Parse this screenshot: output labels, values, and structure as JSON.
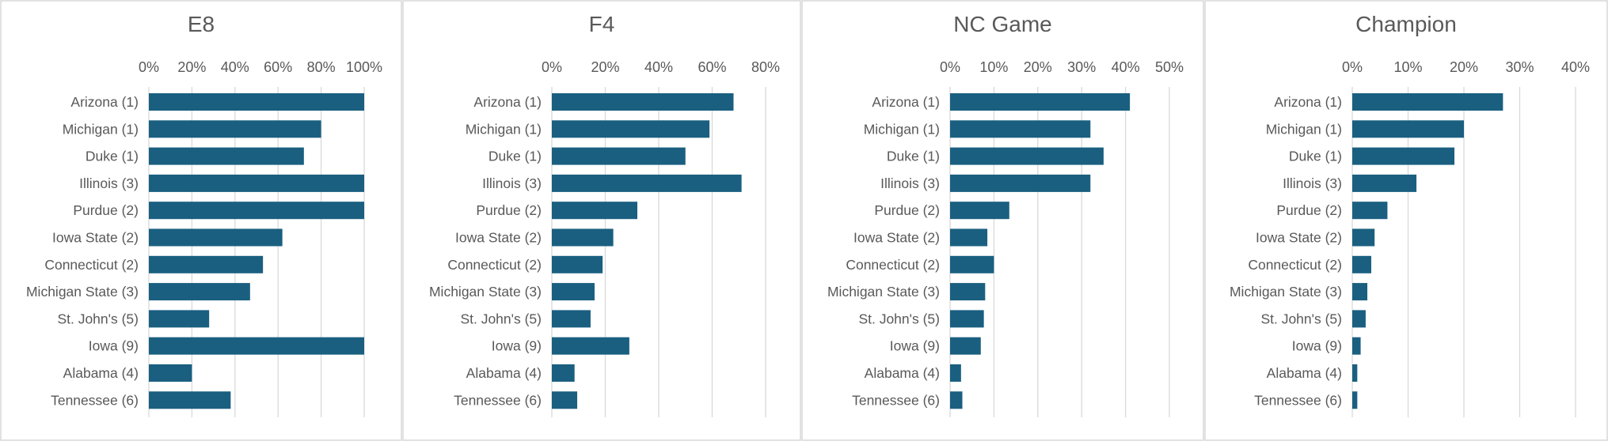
{
  "chart_data": [
    {
      "type": "bar",
      "title": "E8",
      "categories": [
        "Arizona (1)",
        "Michigan (1)",
        "Duke (1)",
        "Illinois (3)",
        "Purdue (2)",
        "Iowa State (2)",
        "Connecticut (2)",
        "Michigan State (3)",
        "St. John's (5)",
        "Iowa (9)",
        "Alabama (4)",
        "Tennessee (6)"
      ],
      "values": [
        1.0,
        0.8,
        0.72,
        1.0,
        1.0,
        0.62,
        0.53,
        0.47,
        0.28,
        1.0,
        0.2,
        0.38
      ],
      "xlim": [
        0,
        1.0
      ],
      "ticks": [
        0,
        0.2,
        0.4,
        0.6,
        0.8,
        1.0
      ],
      "tick_labels": [
        "0%",
        "20%",
        "40%",
        "60%",
        "80%",
        "100%"
      ],
      "grid": true,
      "color": "#1a5f80"
    },
    {
      "type": "bar",
      "title": "F4",
      "categories": [
        "Arizona (1)",
        "Michigan (1)",
        "Duke (1)",
        "Illinois (3)",
        "Purdue (2)",
        "Iowa State (2)",
        "Connecticut (2)",
        "Michigan State (3)",
        "St. John's (5)",
        "Iowa (9)",
        "Alabama (4)",
        "Tennessee (6)"
      ],
      "values": [
        0.68,
        0.59,
        0.5,
        0.71,
        0.32,
        0.23,
        0.19,
        0.16,
        0.145,
        0.29,
        0.085,
        0.095
      ],
      "xlim": [
        0,
        0.8
      ],
      "ticks": [
        0,
        0.2,
        0.4,
        0.6,
        0.8
      ],
      "tick_labels": [
        "0%",
        "20%",
        "40%",
        "60%",
        "80%"
      ],
      "grid": true,
      "color": "#1a5f80"
    },
    {
      "type": "bar",
      "title": "NC Game",
      "categories": [
        "Arizona (1)",
        "Michigan (1)",
        "Duke (1)",
        "Illinois (3)",
        "Purdue (2)",
        "Iowa State (2)",
        "Connecticut (2)",
        "Michigan State (3)",
        "St. John's (5)",
        "Iowa (9)",
        "Alabama (4)",
        "Tennessee (6)"
      ],
      "values": [
        0.41,
        0.32,
        0.35,
        0.32,
        0.135,
        0.085,
        0.1,
        0.08,
        0.077,
        0.07,
        0.025,
        0.028
      ],
      "xlim": [
        0,
        0.5
      ],
      "ticks": [
        0,
        0.1,
        0.2,
        0.3,
        0.4,
        0.5
      ],
      "tick_labels": [
        "0%",
        "10%",
        "20%",
        "30%",
        "40%",
        "50%"
      ],
      "grid": true,
      "color": "#1a5f80"
    },
    {
      "type": "bar",
      "title": "Champion",
      "categories": [
        "Arizona (1)",
        "Michigan (1)",
        "Duke (1)",
        "Illinois (3)",
        "Purdue (2)",
        "Iowa State (2)",
        "Connecticut (2)",
        "Michigan State (3)",
        "St. John's (5)",
        "Iowa (9)",
        "Alabama (4)",
        "Tennessee (6)"
      ],
      "values": [
        0.27,
        0.2,
        0.183,
        0.115,
        0.063,
        0.04,
        0.034,
        0.027,
        0.024,
        0.015,
        0.009,
        0.009
      ],
      "xlim": [
        0,
        0.4
      ],
      "ticks": [
        0,
        0.1,
        0.2,
        0.3,
        0.4
      ],
      "tick_labels": [
        "0%",
        "10%",
        "20%",
        "30%",
        "40%"
      ],
      "grid": true,
      "color": "#1a5f80"
    }
  ]
}
